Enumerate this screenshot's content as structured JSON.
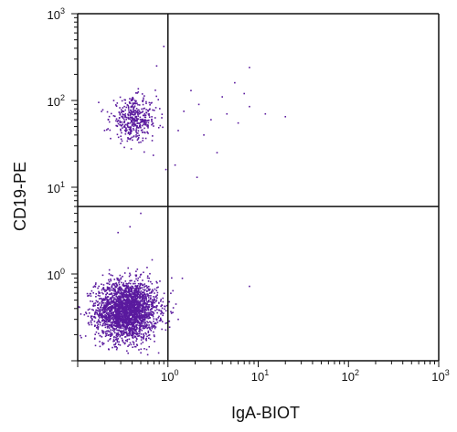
{
  "chart_data": {
    "type": "scatter",
    "title": "",
    "xlabel": "IgA-BIOT",
    "ylabel": "CD19-PE",
    "x_scale": "log",
    "y_scale": "log",
    "xlim": [
      0.1,
      1000
    ],
    "ylim": [
      0.1,
      1000
    ],
    "x_ticks": [
      {
        "value": 1,
        "base": "10",
        "exp": "0"
      },
      {
        "value": 10,
        "base": "10",
        "exp": "1"
      },
      {
        "value": 100,
        "base": "10",
        "exp": "2"
      },
      {
        "value": 1000,
        "base": "10",
        "exp": "3"
      }
    ],
    "y_ticks": [
      {
        "value": 1,
        "base": "10",
        "exp": "0"
      },
      {
        "value": 10,
        "base": "10",
        "exp": "1"
      },
      {
        "value": 100,
        "base": "10",
        "exp": "2"
      },
      {
        "value": 1000,
        "base": "10",
        "exp": "3"
      }
    ],
    "quadrant_gates": {
      "x": 1.0,
      "y": 6.0
    },
    "grid": false,
    "legend": "none",
    "point_color": "#5a1a9e",
    "populations": [
      {
        "name": "double-negative cluster",
        "center": [
          0.35,
          0.38
        ],
        "spread_log10": [
          0.17,
          0.17
        ],
        "count": 2600
      },
      {
        "name": "CD19+ IgA- cluster",
        "center": [
          0.42,
          60
        ],
        "spread_log10": [
          0.13,
          0.12
        ],
        "count": 420
      }
    ],
    "scattered_points": [
      [
        1.5,
        75
      ],
      [
        2.2,
        90
      ],
      [
        3.0,
        60
      ],
      [
        4.5,
        70
      ],
      [
        6.0,
        55
      ],
      [
        8.0,
        85
      ],
      [
        12,
        70
      ],
      [
        20,
        65
      ],
      [
        8.0,
        240
      ],
      [
        5.5,
        160
      ],
      [
        1.8,
        130
      ],
      [
        2.5,
        40
      ],
      [
        3.5,
        25
      ],
      [
        1.2,
        18
      ],
      [
        2.1,
        13
      ],
      [
        0.5,
        5.0
      ],
      [
        0.38,
        3.5
      ],
      [
        0.28,
        3.0
      ],
      [
        0.9,
        420
      ],
      [
        0.75,
        250
      ],
      [
        1.0,
        1.6
      ],
      [
        1.3,
        0.3
      ],
      [
        8.0,
        0.72
      ],
      [
        1.1,
        0.9
      ],
      [
        0.95,
        16
      ],
      [
        1.3,
        45
      ],
      [
        4.0,
        110
      ],
      [
        7.0,
        120
      ]
    ]
  }
}
